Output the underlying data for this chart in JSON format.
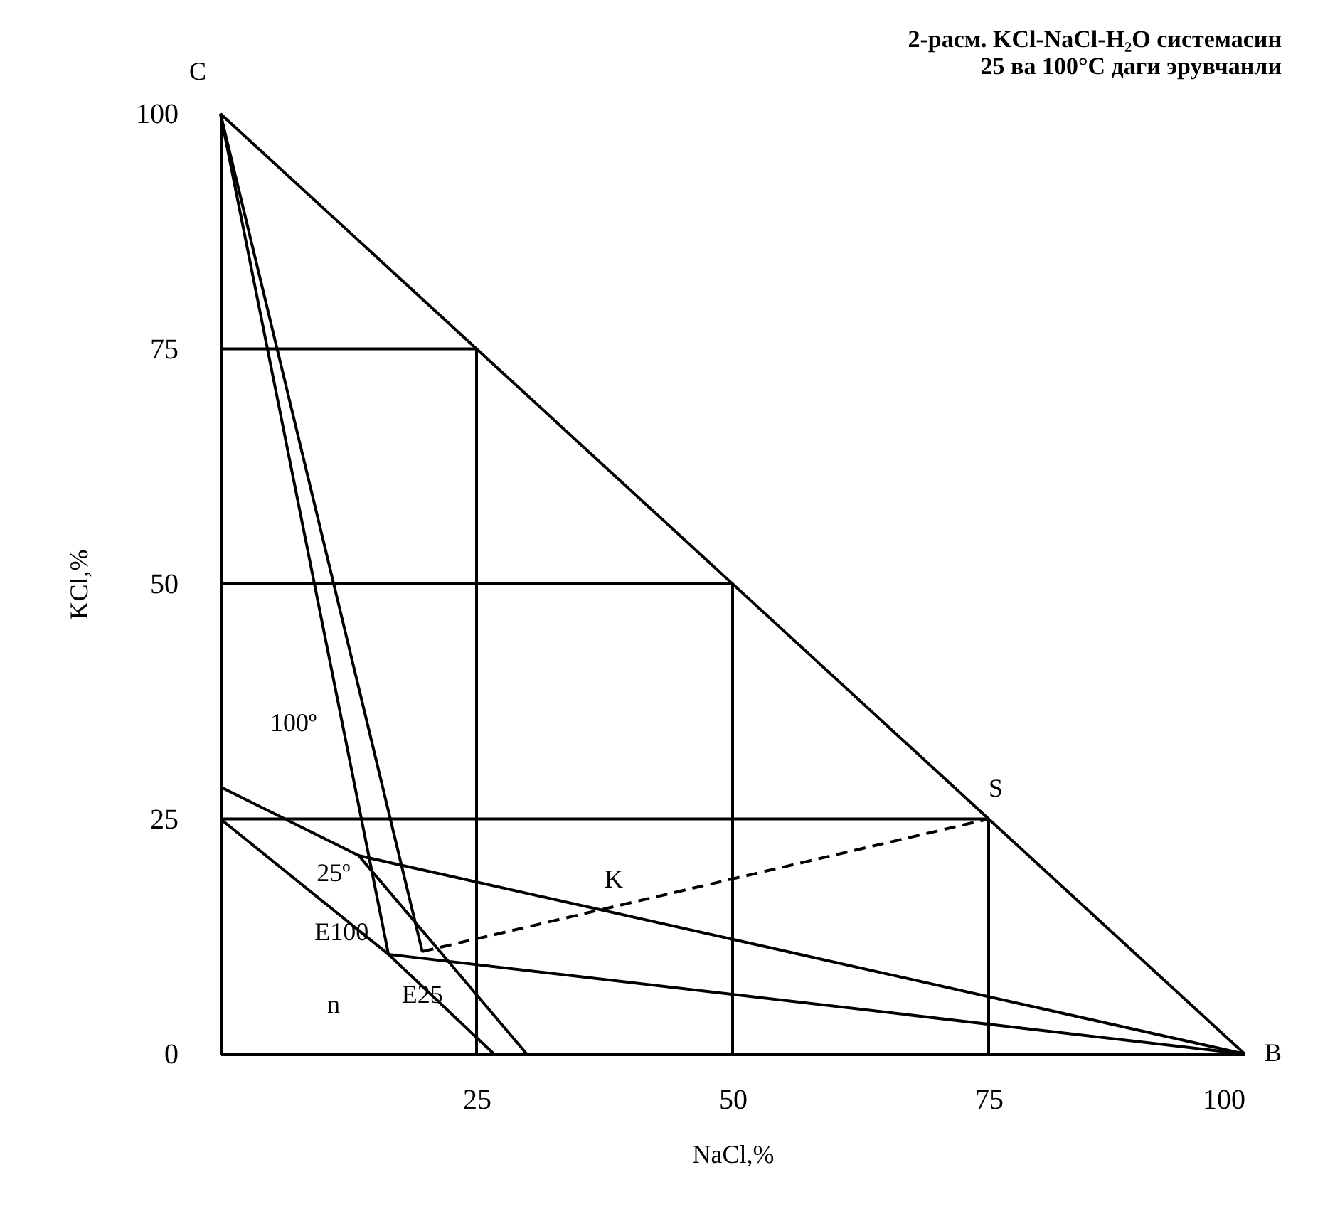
{
  "chart_data": {
    "type": "line",
    "title": [
      "2-расм. KCl-NaCl-H₂O системасин",
      "25 ва 100°C даги эрувчанли"
    ],
    "xlabel": "NaCl,%",
    "ylabel": "KCl,%",
    "xlim": [
      0,
      100
    ],
    "ylim": [
      0,
      100
    ],
    "xticks": [
      25,
      50,
      75,
      100
    ],
    "yticks": [
      0,
      25,
      50,
      75,
      100
    ],
    "grid": false,
    "marker": "none",
    "series": [
      {
        "color": "#000000",
        "x": [
          0,
          100
        ],
        "values": [
          100,
          0
        ]
      },
      {
        "color": "#000000",
        "x": [
          0,
          25,
          25
        ],
        "values": [
          75,
          75,
          0
        ]
      },
      {
        "color": "#000000",
        "x": [
          0,
          50,
          50
        ],
        "values": [
          50,
          50,
          0
        ]
      },
      {
        "color": "#000000",
        "x": [
          0,
          75,
          75
        ],
        "values": [
          25,
          25,
          0
        ]
      },
      {
        "color": "#000000",
        "x": [
          0,
          13.5,
          29.9
        ],
        "values": [
          28.4,
          21.1,
          0
        ]
      },
      {
        "color": "#000000",
        "x": [
          0,
          16.4,
          26.7
        ],
        "values": [
          25,
          10.6,
          0
        ]
      },
      {
        "color": "#000000",
        "x": [
          0,
          16.4
        ],
        "values": [
          100,
          10.6
        ]
      },
      {
        "color": "#000000",
        "x": [
          0,
          19.7
        ],
        "values": [
          100,
          10.9
        ]
      },
      {
        "color": "#000000",
        "x": [
          13.5,
          100
        ],
        "values": [
          21.1,
          0
        ]
      },
      {
        "color": "#000000",
        "x": [
          16.4,
          100
        ],
        "values": [
          10.6,
          0
        ]
      },
      {
        "color": "#000000",
        "x": [
          19.7,
          75
        ],
        "values": [
          10.9,
          25
        ],
        "line_style": "dashed"
      }
    ],
    "annotations": [
      {
        "text": "C",
        "x": 0,
        "y": 100
      },
      {
        "text": "B",
        "x": 100,
        "y": 0
      },
      {
        "text": "S",
        "x": 75,
        "y": 25
      },
      {
        "text": "K",
        "x": 37.5,
        "y": 15.3
      },
      "100º",
      {
        "text": "25º",
        "x": 13.5,
        "y": 21.1
      },
      {
        "text": "E100",
        "x": 16.4,
        "y": 10.6
      },
      "n",
      {
        "text": "E25",
        "x": 19.7,
        "y": 10.9
      }
    ]
  }
}
